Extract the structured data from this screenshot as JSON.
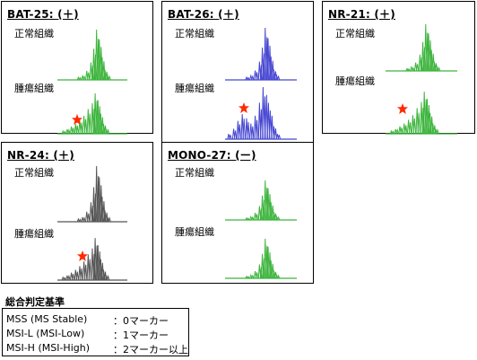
{
  "panels": [
    {
      "id": "bat25",
      "title": "BAT-25: (＋)",
      "normal_label": "正常組織",
      "tumor_label": "腫瘍組織",
      "color": "#3cb43c",
      "star": true
    },
    {
      "id": "bat26",
      "title": "BAT-26: (＋)",
      "normal_label": "正常組織",
      "tumor_label": "腫瘍組織",
      "color": "#4646d2",
      "star": true
    },
    {
      "id": "nr21",
      "title": "NR-21: (＋)",
      "normal_label": "正常組織",
      "tumor_label": "腫瘍組織",
      "color": "#3cb43c",
      "star": true
    },
    {
      "id": "nr24",
      "title": "NR-24: (＋)",
      "normal_label": "正常組織",
      "tumor_label": "腫瘍組織",
      "color": "#555555",
      "star": true
    },
    {
      "id": "mono27",
      "title": "MONO-27: (ー)",
      "normal_label": "正常組織",
      "tumor_label": "腫瘍組織",
      "color": "#3cb43c",
      "star": false
    }
  ],
  "criteria": {
    "title": "総合判定基準",
    "rows": [
      {
        "name": "MSS (MS Stable)",
        "value": "：0マーカー"
      },
      {
        "name": "MSI-L (MSI-Low)",
        "value": "：1マーカー"
      },
      {
        "name": "MSI-H (MSI-High)",
        "value": "：2マーカー以上"
      }
    ]
  },
  "colors": {
    "star": "#ff2a00",
    "baseline_green": "#3cb43c"
  }
}
